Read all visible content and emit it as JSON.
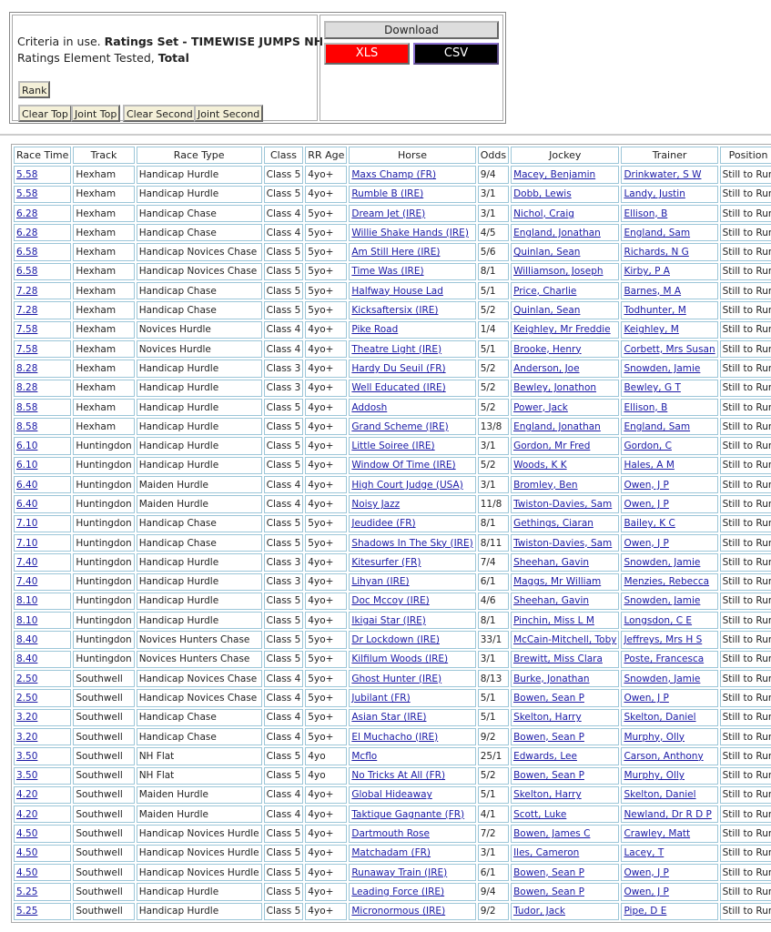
{
  "criteria": {
    "prefix": "Criteria in use.",
    "ratings_set": "Ratings Set - TIMEWISE JUMPS NH",
    "element_prefix": "Ratings Element Tested,",
    "element": "Total",
    "buttons": [
      "Rank",
      "Clear Top",
      "Joint Top",
      "Clear Second",
      "Joint Second"
    ]
  },
  "download": {
    "title": "Download",
    "xls": "XLS",
    "csv": "CSV"
  },
  "table": {
    "headers": [
      "Race Time",
      "Track",
      "Race Type",
      "Class",
      "RR Age",
      "Horse",
      "Odds",
      "Jockey",
      "Trainer",
      "Position"
    ],
    "rows": [
      [
        "5.58",
        "Hexham",
        "Handicap Hurdle",
        "Class 5",
        "4yo+",
        "Maxs Champ (FR)",
        "9/4",
        "Macey, Benjamin",
        "Drinkwater, S W",
        "Still to Run"
      ],
      [
        "5.58",
        "Hexham",
        "Handicap Hurdle",
        "Class 5",
        "4yo+",
        "Rumble B (IRE)",
        "3/1",
        "Dobb, Lewis",
        "Landy, Justin",
        "Still to Run"
      ],
      [
        "6.28",
        "Hexham",
        "Handicap Chase",
        "Class 4",
        "5yo+",
        "Dream Jet (IRE)",
        "3/1",
        "Nichol, Craig",
        "Ellison, B",
        "Still to Run"
      ],
      [
        "6.28",
        "Hexham",
        "Handicap Chase",
        "Class 4",
        "5yo+",
        "Willie Shake Hands (IRE)",
        "4/5",
        "England, Jonathan",
        "England, Sam",
        "Still to Run"
      ],
      [
        "6.58",
        "Hexham",
        "Handicap Novices Chase",
        "Class 5",
        "5yo+",
        "Am Still Here (IRE)",
        "5/6",
        "Quinlan, Sean",
        "Richards, N G",
        "Still to Run"
      ],
      [
        "6.58",
        "Hexham",
        "Handicap Novices Chase",
        "Class 5",
        "5yo+",
        "Time Was (IRE)",
        "8/1",
        "Williamson, Joseph",
        "Kirby, P A",
        "Still to Run"
      ],
      [
        "7.28",
        "Hexham",
        "Handicap Chase",
        "Class 5",
        "5yo+",
        "Halfway House Lad",
        "5/1",
        "Price, Charlie",
        "Barnes, M A",
        "Still to Run"
      ],
      [
        "7.28",
        "Hexham",
        "Handicap Chase",
        "Class 5",
        "5yo+",
        "Kicksaftersix (IRE)",
        "5/2",
        "Quinlan, Sean",
        "Todhunter, M",
        "Still to Run"
      ],
      [
        "7.58",
        "Hexham",
        "Novices Hurdle",
        "Class 4",
        "4yo+",
        "Pike Road",
        "1/4",
        "Keighley, Mr Freddie",
        "Keighley, M",
        "Still to Run"
      ],
      [
        "7.58",
        "Hexham",
        "Novices Hurdle",
        "Class 4",
        "4yo+",
        "Theatre Light (IRE)",
        "5/1",
        "Brooke, Henry",
        "Corbett, Mrs Susan",
        "Still to Run"
      ],
      [
        "8.28",
        "Hexham",
        "Handicap Hurdle",
        "Class 3",
        "4yo+",
        "Hardy Du Seuil (FR)",
        "5/2",
        "Anderson, Joe",
        "Snowden, Jamie",
        "Still to Run"
      ],
      [
        "8.28",
        "Hexham",
        "Handicap Hurdle",
        "Class 3",
        "4yo+",
        "Well Educated (IRE)",
        "5/2",
        "Bewley, Jonathon",
        "Bewley, G T",
        "Still to Run"
      ],
      [
        "8.58",
        "Hexham",
        "Handicap Hurdle",
        "Class 5",
        "4yo+",
        "Addosh",
        "5/2",
        "Power, Jack",
        "Ellison, B",
        "Still to Run"
      ],
      [
        "8.58",
        "Hexham",
        "Handicap Hurdle",
        "Class 5",
        "4yo+",
        "Grand Scheme (IRE)",
        "13/8",
        "England, Jonathan",
        "England, Sam",
        "Still to Run"
      ],
      [
        "6.10",
        "Huntingdon",
        "Handicap Hurdle",
        "Class 5",
        "4yo+",
        "Little Soiree (IRE)",
        "3/1",
        "Gordon, Mr Fred",
        "Gordon, C",
        "Still to Run"
      ],
      [
        "6.10",
        "Huntingdon",
        "Handicap Hurdle",
        "Class 5",
        "4yo+",
        "Window Of Time (IRE)",
        "5/2",
        "Woods, K K",
        "Hales, A M",
        "Still to Run"
      ],
      [
        "6.40",
        "Huntingdon",
        "Maiden Hurdle",
        "Class 4",
        "4yo+",
        "High Court Judge (USA)",
        "3/1",
        "Bromley, Ben",
        "Owen, J P",
        "Still to Run"
      ],
      [
        "6.40",
        "Huntingdon",
        "Maiden Hurdle",
        "Class 4",
        "4yo+",
        "Noisy Jazz",
        "11/8",
        "Twiston-Davies, Sam",
        "Owen, J P",
        "Still to Run"
      ],
      [
        "7.10",
        "Huntingdon",
        "Handicap Chase",
        "Class 5",
        "5yo+",
        "Jeudidee (FR)",
        "8/1",
        "Gethings, Ciaran",
        "Bailey, K C",
        "Still to Run"
      ],
      [
        "7.10",
        "Huntingdon",
        "Handicap Chase",
        "Class 5",
        "5yo+",
        "Shadows In The Sky (IRE)",
        "8/11",
        "Twiston-Davies, Sam",
        "Owen, J P",
        "Still to Run"
      ],
      [
        "7.40",
        "Huntingdon",
        "Handicap Hurdle",
        "Class 3",
        "4yo+",
        "Kitesurfer (FR)",
        "7/4",
        "Sheehan, Gavin",
        "Snowden, Jamie",
        "Still to Run"
      ],
      [
        "7.40",
        "Huntingdon",
        "Handicap Hurdle",
        "Class 3",
        "4yo+",
        "Lihyan (IRE)",
        "6/1",
        "Maggs, Mr William",
        "Menzies, Rebecca",
        "Still to Run"
      ],
      [
        "8.10",
        "Huntingdon",
        "Handicap Hurdle",
        "Class 5",
        "4yo+",
        "Doc Mccoy (IRE)",
        "4/6",
        "Sheehan, Gavin",
        "Snowden, Jamie",
        "Still to Run"
      ],
      [
        "8.10",
        "Huntingdon",
        "Handicap Hurdle",
        "Class 5",
        "4yo+",
        "Ikigai Star (IRE)",
        "8/1",
        "Pinchin, Miss L M",
        "Longsdon, C E",
        "Still to Run"
      ],
      [
        "8.40",
        "Huntingdon",
        "Novices Hunters Chase",
        "Class 5",
        "5yo+",
        "Dr Lockdown (IRE)",
        "33/1",
        "McCain-Mitchell, Toby",
        "Jeffreys, Mrs H S",
        "Still to Run"
      ],
      [
        "8.40",
        "Huntingdon",
        "Novices Hunters Chase",
        "Class 5",
        "5yo+",
        "Kilfilum Woods (IRE)",
        "3/1",
        "Brewitt, Miss Clara",
        "Poste, Francesca",
        "Still to Run"
      ],
      [
        "2.50",
        "Southwell",
        "Handicap Novices Chase",
        "Class 4",
        "5yo+",
        "Ghost Hunter (IRE)",
        "8/13",
        "Burke, Jonathan",
        "Snowden, Jamie",
        "Still to Run"
      ],
      [
        "2.50",
        "Southwell",
        "Handicap Novices Chase",
        "Class 4",
        "5yo+",
        "Jubilant (FR)",
        "5/1",
        "Bowen, Sean P",
        "Owen, J P",
        "Still to Run"
      ],
      [
        "3.20",
        "Southwell",
        "Handicap Chase",
        "Class 4",
        "5yo+",
        "Asian Star (IRE)",
        "5/1",
        "Skelton, Harry",
        "Skelton, Daniel",
        "Still to Run"
      ],
      [
        "3.20",
        "Southwell",
        "Handicap Chase",
        "Class 4",
        "5yo+",
        "El Muchacho (IRE)",
        "9/2",
        "Bowen, Sean P",
        "Murphy, Olly",
        "Still to Run"
      ],
      [
        "3.50",
        "Southwell",
        "NH Flat",
        "Class 5",
        "4yo",
        "Mcflo",
        "25/1",
        "Edwards, Lee",
        "Carson, Anthony",
        "Still to Run"
      ],
      [
        "3.50",
        "Southwell",
        "NH Flat",
        "Class 5",
        "4yo",
        "No Tricks At All (FR)",
        "5/2",
        "Bowen, Sean P",
        "Murphy, Olly",
        "Still to Run"
      ],
      [
        "4.20",
        "Southwell",
        "Maiden Hurdle",
        "Class 4",
        "4yo+",
        "Global Hideaway",
        "5/1",
        "Skelton, Harry",
        "Skelton, Daniel",
        "Still to Run"
      ],
      [
        "4.20",
        "Southwell",
        "Maiden Hurdle",
        "Class 4",
        "4yo+",
        "Taktique Gagnante (FR)",
        "4/1",
        "Scott, Luke",
        "Newland, Dr R D P",
        "Still to Run"
      ],
      [
        "4.50",
        "Southwell",
        "Handicap Novices Hurdle",
        "Class 5",
        "4yo+",
        "Dartmouth Rose",
        "7/2",
        "Bowen, James C",
        "Crawley, Matt",
        "Still to Run"
      ],
      [
        "4.50",
        "Southwell",
        "Handicap Novices Hurdle",
        "Class 5",
        "4yo+",
        "Matchadam (FR)",
        "3/1",
        "Iles, Cameron",
        "Lacey, T",
        "Still to Run"
      ],
      [
        "4.50",
        "Southwell",
        "Handicap Novices Hurdle",
        "Class 5",
        "4yo+",
        "Runaway Train (IRE)",
        "6/1",
        "Bowen, Sean P",
        "Owen, J P",
        "Still to Run"
      ],
      [
        "5.25",
        "Southwell",
        "Handicap Hurdle",
        "Class 5",
        "4yo+",
        "Leading Force (IRE)",
        "9/4",
        "Bowen, Sean P",
        "Owen, J P",
        "Still to Run"
      ],
      [
        "5.25",
        "Southwell",
        "Handicap Hurdle",
        "Class 5",
        "4yo+",
        "Micronormous (IRE)",
        "9/2",
        "Tudor, Jack",
        "Pipe, D E",
        "Still to Run"
      ]
    ]
  }
}
